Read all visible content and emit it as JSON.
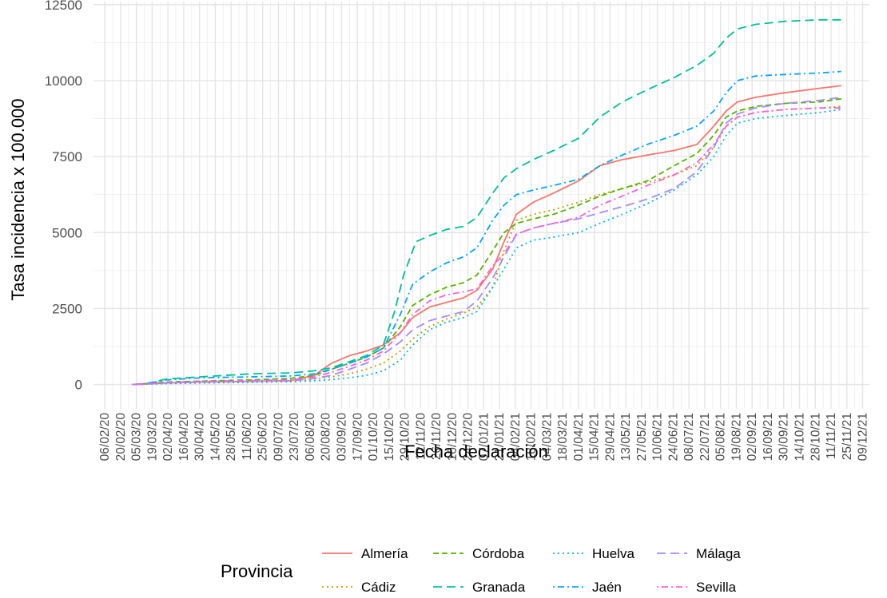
{
  "chart_data": {
    "type": "line",
    "xlabel": "Fecha declaración",
    "ylabel": "Tasa incidencia x 100.000",
    "ylim": [
      -800,
      12600
    ],
    "yticks": [
      0,
      2500,
      5000,
      7500,
      10000,
      12500
    ],
    "ytick_labels": [
      "0",
      "2500",
      "5000",
      "7500",
      "10000",
      "12500"
    ],
    "xlim": [
      "2020-01-27",
      "2021-12-15"
    ],
    "xticks": [
      "2020-02-06",
      "2020-02-20",
      "2020-03-05",
      "2020-03-19",
      "2020-04-02",
      "2020-04-16",
      "2020-04-30",
      "2020-05-14",
      "2020-05-28",
      "2020-06-11",
      "2020-06-25",
      "2020-07-09",
      "2020-07-23",
      "2020-08-06",
      "2020-08-20",
      "2020-09-03",
      "2020-09-17",
      "2020-10-01",
      "2020-10-15",
      "2020-10-29",
      "2020-11-12",
      "2020-11-26",
      "2020-12-10",
      "2020-12-24",
      "2021-01-07",
      "2021-01-21",
      "2021-02-04",
      "2021-02-18",
      "2021-03-04",
      "2021-03-18",
      "2021-04-01",
      "2021-04-15",
      "2021-04-29",
      "2021-05-13",
      "2021-05-27",
      "2021-06-10",
      "2021-06-24",
      "2021-07-08",
      "2021-07-22",
      "2021-08-05",
      "2021-08-19",
      "2021-09-02",
      "2021-09-16",
      "2021-09-30",
      "2021-10-14",
      "2021-10-28",
      "2021-11-11",
      "2021-11-25",
      "2021-12-09"
    ],
    "xtick_labels": [
      "06/02/20",
      "20/02/20",
      "05/03/20",
      "19/03/20",
      "02/04/20",
      "16/04/20",
      "30/04/20",
      "14/05/20",
      "28/05/20",
      "11/06/20",
      "25/06/20",
      "09/07/20",
      "23/07/20",
      "06/08/20",
      "20/08/20",
      "03/09/20",
      "17/09/20",
      "01/10/20",
      "15/10/20",
      "29/10/20",
      "12/11/20",
      "26/11/20",
      "10/12/20",
      "24/12/20",
      "07/01/21",
      "21/01/21",
      "04/02/21",
      "18/02/21",
      "04/03/21",
      "18/03/21",
      "01/04/21",
      "15/04/21",
      "29/04/21",
      "13/05/21",
      "27/05/21",
      "10/06/21",
      "24/06/21",
      "08/07/21",
      "22/07/21",
      "05/08/21",
      "19/08/21",
      "02/09/21",
      "16/09/21",
      "30/09/21",
      "14/10/21",
      "28/10/21",
      "11/11/21",
      "25/11/21",
      "09/12/21"
    ],
    "grid": true,
    "legend_title": "Provincia",
    "legend_position": "bottom",
    "series": [
      {
        "name": "Almería",
        "color": "#F8766D",
        "dash": "solid",
        "x": [
          "2020-03-01",
          "2020-03-15",
          "2020-04-01",
          "2020-05-01",
          "2020-06-15",
          "2020-07-20",
          "2020-08-10",
          "2020-08-25",
          "2020-09-10",
          "2020-09-25",
          "2020-10-10",
          "2020-10-25",
          "2020-11-05",
          "2020-11-20",
          "2020-12-05",
          "2020-12-20",
          "2021-01-01",
          "2021-01-15",
          "2021-01-25",
          "2021-02-05",
          "2021-02-20",
          "2021-03-10",
          "2021-04-01",
          "2021-04-20",
          "2021-05-10",
          "2021-06-01",
          "2021-06-25",
          "2021-07-15",
          "2021-07-30",
          "2021-08-10",
          "2021-08-20",
          "2021-09-05",
          "2021-10-01",
          "2021-11-01",
          "2021-11-20"
        ],
        "y": [
          0,
          20,
          50,
          80,
          100,
          130,
          300,
          700,
          950,
          1100,
          1300,
          1700,
          2200,
          2550,
          2700,
          2850,
          3100,
          3800,
          4700,
          5600,
          6000,
          6300,
          6700,
          7200,
          7400,
          7550,
          7700,
          7900,
          8500,
          9000,
          9300,
          9450,
          9600,
          9750,
          9830
        ]
      },
      {
        "name": "Cádiz",
        "color": "#C49A00",
        "dash": "dot",
        "x": [
          "2020-03-01",
          "2020-03-15",
          "2020-04-01",
          "2020-05-01",
          "2020-06-15",
          "2020-07-20",
          "2020-08-10",
          "2020-08-25",
          "2020-09-10",
          "2020-09-25",
          "2020-10-10",
          "2020-10-25",
          "2020-11-05",
          "2020-11-20",
          "2020-12-05",
          "2020-12-20",
          "2021-01-01",
          "2021-01-15",
          "2021-01-25",
          "2021-02-05",
          "2021-02-20",
          "2021-03-10",
          "2021-04-01",
          "2021-04-20",
          "2021-05-10",
          "2021-06-01",
          "2021-06-25",
          "2021-07-15",
          "2021-07-30",
          "2021-08-10",
          "2021-08-20",
          "2021-09-05",
          "2021-10-01",
          "2021-11-01",
          "2021-11-20"
        ],
        "y": [
          0,
          20,
          40,
          60,
          90,
          120,
          180,
          250,
          350,
          500,
          700,
          1100,
          1500,
          1900,
          2150,
          2350,
          2550,
          3200,
          4400,
          5400,
          5600,
          5750,
          6000,
          6250,
          6450,
          6650,
          6900,
          7200,
          7800,
          8500,
          8800,
          8950,
          9050,
          9100,
          9150
        ]
      },
      {
        "name": "Córdoba",
        "color": "#53B400",
        "dash": "dash",
        "x": [
          "2020-03-01",
          "2020-03-15",
          "2020-04-01",
          "2020-05-01",
          "2020-06-15",
          "2020-07-20",
          "2020-08-10",
          "2020-08-25",
          "2020-09-10",
          "2020-09-25",
          "2020-10-10",
          "2020-10-25",
          "2020-11-05",
          "2020-11-20",
          "2020-12-05",
          "2020-12-20",
          "2021-01-01",
          "2021-01-15",
          "2021-01-25",
          "2021-02-05",
          "2021-02-20",
          "2021-03-10",
          "2021-04-01",
          "2021-04-20",
          "2021-05-10",
          "2021-06-01",
          "2021-06-25",
          "2021-07-15",
          "2021-07-30",
          "2021-08-10",
          "2021-08-20",
          "2021-09-05",
          "2021-10-01",
          "2021-11-01",
          "2021-11-20"
        ],
        "y": [
          0,
          30,
          80,
          110,
          150,
          200,
          300,
          500,
          700,
          900,
          1200,
          1900,
          2600,
          2950,
          3200,
          3350,
          3600,
          4400,
          5000,
          5300,
          5450,
          5600,
          5900,
          6200,
          6450,
          6700,
          7200,
          7600,
          8200,
          8800,
          9000,
          9150,
          9250,
          9300,
          9400
        ]
      },
      {
        "name": "Granada",
        "color": "#00C094",
        "dash": "longdash",
        "x": [
          "2020-03-01",
          "2020-03-15",
          "2020-04-01",
          "2020-05-01",
          "2020-06-15",
          "2020-07-20",
          "2020-08-10",
          "2020-08-25",
          "2020-09-10",
          "2020-09-25",
          "2020-10-10",
          "2020-10-20",
          "2020-10-28",
          "2020-11-08",
          "2020-11-20",
          "2020-12-05",
          "2020-12-20",
          "2021-01-01",
          "2021-01-15",
          "2021-01-25",
          "2021-02-05",
          "2021-02-20",
          "2021-03-10",
          "2021-04-01",
          "2021-04-20",
          "2021-05-10",
          "2021-06-01",
          "2021-06-25",
          "2021-07-15",
          "2021-07-30",
          "2021-08-10",
          "2021-08-20",
          "2021-09-05",
          "2021-10-01",
          "2021-11-01",
          "2021-11-20"
        ],
        "y": [
          0,
          40,
          180,
          250,
          350,
          380,
          450,
          550,
          750,
          950,
          1300,
          2400,
          3600,
          4700,
          4900,
          5100,
          5200,
          5500,
          6300,
          6800,
          7100,
          7400,
          7700,
          8100,
          8800,
          9300,
          9700,
          10100,
          10500,
          10900,
          11400,
          11700,
          11850,
          11950,
          12000,
          12000
        ]
      },
      {
        "name": "Huelva",
        "color": "#00B6EB",
        "dash": "dot",
        "x": [
          "2020-03-01",
          "2020-03-15",
          "2020-04-01",
          "2020-05-01",
          "2020-06-15",
          "2020-07-20",
          "2020-08-10",
          "2020-08-25",
          "2020-09-10",
          "2020-09-25",
          "2020-10-10",
          "2020-10-25",
          "2020-11-05",
          "2020-11-20",
          "2020-12-05",
          "2020-12-20",
          "2021-01-01",
          "2021-01-15",
          "2021-01-25",
          "2021-02-05",
          "2021-02-20",
          "2021-03-10",
          "2021-04-01",
          "2021-04-20",
          "2021-05-10",
          "2021-06-01",
          "2021-06-25",
          "2021-07-15",
          "2021-07-30",
          "2021-08-10",
          "2021-08-20",
          "2021-09-05",
          "2021-10-01",
          "2021-11-01",
          "2021-11-20"
        ],
        "y": [
          0,
          10,
          30,
          50,
          70,
          90,
          120,
          160,
          220,
          300,
          450,
          800,
          1300,
          1800,
          2050,
          2200,
          2400,
          3200,
          3800,
          4500,
          4750,
          4850,
          5000,
          5300,
          5600,
          5950,
          6400,
          6900,
          7500,
          8200,
          8600,
          8750,
          8850,
          8950,
          9050
        ]
      },
      {
        "name": "Jaén",
        "color": "#06A4FF",
        "dash": "dashdot",
        "x": [
          "2020-03-01",
          "2020-03-15",
          "2020-04-01",
          "2020-05-01",
          "2020-06-15",
          "2020-07-20",
          "2020-08-10",
          "2020-08-25",
          "2020-09-10",
          "2020-09-25",
          "2020-10-10",
          "2020-10-25",
          "2020-11-05",
          "2020-11-20",
          "2020-12-05",
          "2020-12-20",
          "2021-01-01",
          "2021-01-15",
          "2021-01-25",
          "2021-02-05",
          "2021-02-20",
          "2021-03-10",
          "2021-04-01",
          "2021-04-20",
          "2021-05-10",
          "2021-06-01",
          "2021-06-25",
          "2021-07-15",
          "2021-07-30",
          "2021-08-10",
          "2021-08-20",
          "2021-09-05",
          "2021-10-01",
          "2021-11-01",
          "2021-11-20"
        ],
        "y": [
          0,
          30,
          150,
          220,
          250,
          280,
          350,
          500,
          700,
          900,
          1200,
          2300,
          3300,
          3700,
          4000,
          4200,
          4500,
          5400,
          5900,
          6250,
          6400,
          6550,
          6750,
          7200,
          7550,
          7900,
          8200,
          8500,
          9000,
          9600,
          10000,
          10150,
          10200,
          10250,
          10300
        ]
      },
      {
        "name": "Málaga",
        "color": "#A58AFF",
        "dash": "longdash",
        "x": [
          "2020-03-01",
          "2020-03-15",
          "2020-04-01",
          "2020-05-01",
          "2020-06-15",
          "2020-07-20",
          "2020-08-10",
          "2020-08-25",
          "2020-09-10",
          "2020-09-25",
          "2020-10-10",
          "2020-10-25",
          "2020-11-05",
          "2020-11-20",
          "2020-12-05",
          "2020-12-20",
          "2021-01-01",
          "2021-01-15",
          "2021-01-25",
          "2021-02-05",
          "2021-02-20",
          "2021-03-10",
          "2021-04-01",
          "2021-04-20",
          "2021-05-10",
          "2021-06-01",
          "2021-06-25",
          "2021-07-15",
          "2021-07-30",
          "2021-08-10",
          "2021-08-20",
          "2021-09-05",
          "2021-10-01",
          "2021-11-01",
          "2021-11-20"
        ],
        "y": [
          0,
          20,
          50,
          80,
          100,
          120,
          200,
          300,
          500,
          700,
          1000,
          1400,
          1800,
          2100,
          2250,
          2400,
          2750,
          3500,
          4200,
          4950,
          5150,
          5300,
          5450,
          5650,
          5850,
          6100,
          6450,
          7000,
          7800,
          8600,
          8900,
          9100,
          9250,
          9350,
          9450
        ]
      },
      {
        "name": "Sevilla",
        "color": "#FB61D7",
        "dash": "dashdot",
        "x": [
          "2020-03-01",
          "2020-03-15",
          "2020-04-01",
          "2020-05-01",
          "2020-06-15",
          "2020-07-20",
          "2020-08-10",
          "2020-08-25",
          "2020-09-10",
          "2020-09-25",
          "2020-10-10",
          "2020-10-25",
          "2020-11-05",
          "2020-11-20",
          "2020-12-05",
          "2020-12-20",
          "2021-01-01",
          "2021-01-15",
          "2021-01-25",
          "2021-02-05",
          "2021-02-20",
          "2021-03-10",
          "2021-04-01",
          "2021-04-20",
          "2021-05-10",
          "2021-06-01",
          "2021-06-25",
          "2021-07-15",
          "2021-07-30",
          "2021-08-10",
          "2021-08-20",
          "2021-09-05",
          "2021-10-01",
          "2021-11-01",
          "2021-11-20"
        ],
        "y": [
          0,
          25,
          60,
          100,
          130,
          150,
          250,
          400,
          600,
          800,
          1100,
          1700,
          2300,
          2750,
          2950,
          3050,
          3150,
          3900,
          4300,
          4950,
          5150,
          5300,
          5500,
          5900,
          6200,
          6550,
          6900,
          7300,
          7900,
          8500,
          8800,
          8950,
          9050,
          9100,
          9100
        ]
      }
    ]
  }
}
